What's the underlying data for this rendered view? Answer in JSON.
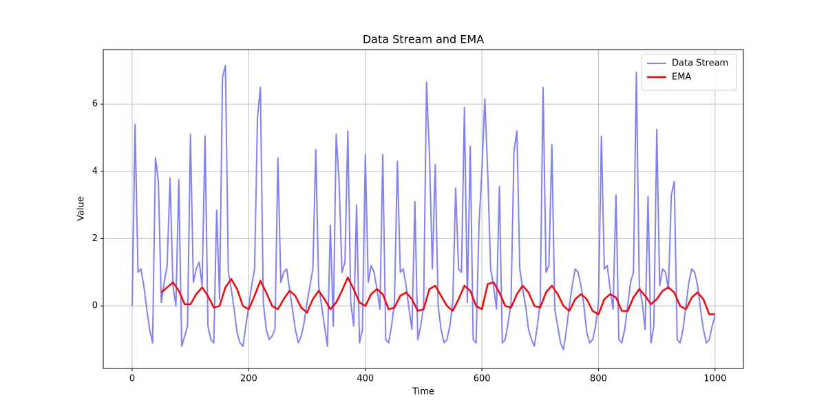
{
  "chart_data": {
    "type": "line",
    "title": "Data Stream and EMA",
    "x_label": "Time",
    "y_label": "Value",
    "xlim": [
      -49.6,
      1048.6
    ],
    "ylim": [
      -1.86,
      7.62
    ],
    "xticks": [
      0,
      200,
      400,
      600,
      800,
      1000
    ],
    "yticks": [
      0,
      2,
      4,
      6
    ],
    "grid": true,
    "legend": "upper right",
    "series": [
      {
        "name": "Data Stream",
        "color": "#7f7fff",
        "width": 2,
        "x": [
          0,
          5,
          10,
          15,
          20,
          25,
          30,
          35,
          40,
          45,
          50,
          55,
          60,
          65,
          70,
          75,
          80,
          85,
          90,
          95,
          100,
          105,
          110,
          115,
          120,
          125,
          130,
          135,
          140,
          145,
          150,
          155,
          160,
          165,
          170,
          175,
          180,
          185,
          190,
          195,
          200,
          205,
          210,
          215,
          220,
          225,
          230,
          235,
          240,
          245,
          250,
          255,
          260,
          265,
          270,
          275,
          280,
          285,
          290,
          295,
          300,
          305,
          310,
          315,
          320,
          325,
          330,
          335,
          340,
          345,
          350,
          355,
          360,
          365,
          370,
          375,
          380,
          385,
          390,
          395,
          400,
          405,
          410,
          415,
          420,
          425,
          430,
          435,
          440,
          445,
          450,
          455,
          460,
          465,
          470,
          475,
          480,
          485,
          490,
          495,
          500,
          505,
          510,
          515,
          520,
          525,
          530,
          535,
          540,
          545,
          550,
          555,
          560,
          565,
          570,
          575,
          580,
          585,
          590,
          595,
          600,
          605,
          610,
          615,
          620,
          625,
          630,
          635,
          640,
          645,
          650,
          655,
          660,
          665,
          670,
          675,
          680,
          685,
          690,
          695,
          700,
          705,
          710,
          715,
          720,
          725,
          730,
          735,
          740,
          745,
          750,
          755,
          760,
          765,
          770,
          775,
          780,
          785,
          790,
          795,
          800,
          805,
          810,
          815,
          820,
          825,
          830,
          835,
          840,
          845,
          850,
          855,
          860,
          865,
          870,
          875,
          880,
          885,
          890,
          895,
          900,
          905,
          910,
          915,
          920,
          925,
          930,
          935,
          940,
          945,
          950,
          955,
          960,
          965,
          970,
          975,
          980,
          985,
          990,
          995,
          1000
        ],
        "values": [
          0,
          5.4,
          1.0,
          1.1,
          0.6,
          -0.1,
          -0.7,
          -1.1,
          4.4,
          3.7,
          0.1,
          0.7,
          1.2,
          3.8,
          0.6,
          0.0,
          3.75,
          -1.2,
          -0.9,
          -0.6,
          5.1,
          0.7,
          1.1,
          1.3,
          0.6,
          5.05,
          -0.6,
          -1.0,
          -1.1,
          2.85,
          0.2,
          6.8,
          7.15,
          1.0,
          0.5,
          -0.1,
          -0.8,
          -1.1,
          -1.2,
          -0.6,
          0.0,
          0.6,
          1.1,
          5.6,
          6.5,
          0.1,
          -0.7,
          -1.0,
          -0.9,
          -0.7,
          4.4,
          0.7,
          1.0,
          1.1,
          0.5,
          -0.1,
          -0.7,
          -1.1,
          -0.9,
          -0.5,
          0.1,
          0.6,
          1.1,
          4.65,
          0.6,
          0.0,
          -0.6,
          -1.2,
          2.4,
          -0.6,
          5.1,
          3.7,
          1.0,
          1.3,
          5.2,
          0.1,
          -0.6,
          3.0,
          -1.1,
          -0.7,
          4.5,
          0.7,
          1.2,
          1.0,
          0.5,
          -0.1,
          4.5,
          -1.0,
          -1.1,
          -0.6,
          0.1,
          4.3,
          1.0,
          1.1,
          0.6,
          -0.1,
          -0.7,
          3.1,
          -1.0,
          -0.6,
          0.0,
          6.65,
          4.5,
          1.1,
          4.2,
          0.0,
          -0.7,
          -1.1,
          -1.0,
          -0.6,
          0.1,
          3.5,
          1.1,
          1.0,
          5.9,
          0.1,
          4.75,
          -1.0,
          -1.1,
          2.4,
          4.05,
          6.15,
          3.95,
          1.1,
          0.6,
          -0.1,
          3.55,
          -1.1,
          -1.0,
          -0.5,
          0.1,
          4.6,
          5.2,
          1.1,
          0.5,
          0.0,
          -0.7,
          -1.0,
          -1.2,
          -0.6,
          0.1,
          6.5,
          1.0,
          1.2,
          4.8,
          -0.1,
          -0.6,
          -1.1,
          -1.3,
          -0.7,
          0.0,
          0.6,
          1.1,
          1.0,
          0.6,
          0.0,
          -0.8,
          -1.1,
          -1.0,
          -0.6,
          0.1,
          5.05,
          1.1,
          1.2,
          0.5,
          -0.1,
          3.3,
          -1.0,
          -1.1,
          -0.7,
          0.0,
          0.7,
          1.0,
          6.95,
          0.6,
          0.1,
          -0.7,
          3.25,
          -1.1,
          -0.6,
          5.25,
          0.6,
          1.1,
          1.0,
          0.5,
          3.3,
          3.7,
          -1.0,
          -1.1,
          -0.7,
          0.0,
          0.7,
          1.1,
          1.0,
          0.6,
          -0.1,
          -0.7,
          -1.1,
          -1.0,
          -0.6,
          -0.3
        ]
      },
      {
        "name": "EMA",
        "color": "#ff0000",
        "width": 2.5,
        "x": [
          50,
          60,
          70,
          80,
          90,
          100,
          110,
          120,
          130,
          140,
          150,
          160,
          170,
          180,
          190,
          200,
          210,
          220,
          230,
          240,
          250,
          260,
          270,
          280,
          290,
          300,
          310,
          320,
          330,
          340,
          350,
          360,
          370,
          380,
          390,
          400,
          410,
          420,
          430,
          440,
          450,
          460,
          470,
          480,
          490,
          500,
          510,
          520,
          530,
          540,
          550,
          560,
          570,
          580,
          590,
          600,
          610,
          620,
          630,
          640,
          650,
          660,
          670,
          680,
          690,
          700,
          710,
          720,
          730,
          740,
          750,
          760,
          770,
          780,
          790,
          800,
          810,
          820,
          830,
          840,
          850,
          860,
          870,
          880,
          890,
          900,
          910,
          920,
          930,
          940,
          950,
          960,
          970,
          980,
          990,
          1000
        ],
        "values": [
          0.4,
          0.55,
          0.7,
          0.45,
          0.05,
          0.05,
          0.35,
          0.55,
          0.3,
          -0.05,
          0.0,
          0.55,
          0.8,
          0.5,
          0.0,
          -0.1,
          0.3,
          0.75,
          0.4,
          0.0,
          -0.1,
          0.2,
          0.45,
          0.3,
          -0.05,
          -0.2,
          0.2,
          0.45,
          0.2,
          -0.1,
          0.1,
          0.45,
          0.85,
          0.5,
          0.1,
          0.0,
          0.35,
          0.5,
          0.35,
          -0.1,
          -0.05,
          0.3,
          0.4,
          0.2,
          -0.15,
          -0.1,
          0.5,
          0.6,
          0.3,
          0.0,
          -0.15,
          0.2,
          0.6,
          0.45,
          0.0,
          -0.1,
          0.65,
          0.7,
          0.4,
          0.0,
          -0.05,
          0.35,
          0.6,
          0.4,
          0.0,
          -0.05,
          0.4,
          0.6,
          0.35,
          0.0,
          -0.15,
          0.2,
          0.35,
          0.2,
          -0.15,
          -0.25,
          0.2,
          0.35,
          0.25,
          -0.15,
          -0.15,
          0.25,
          0.5,
          0.3,
          0.05,
          0.2,
          0.45,
          0.55,
          0.4,
          0.0,
          -0.1,
          0.25,
          0.4,
          0.2,
          -0.25,
          -0.25
        ]
      }
    ]
  }
}
